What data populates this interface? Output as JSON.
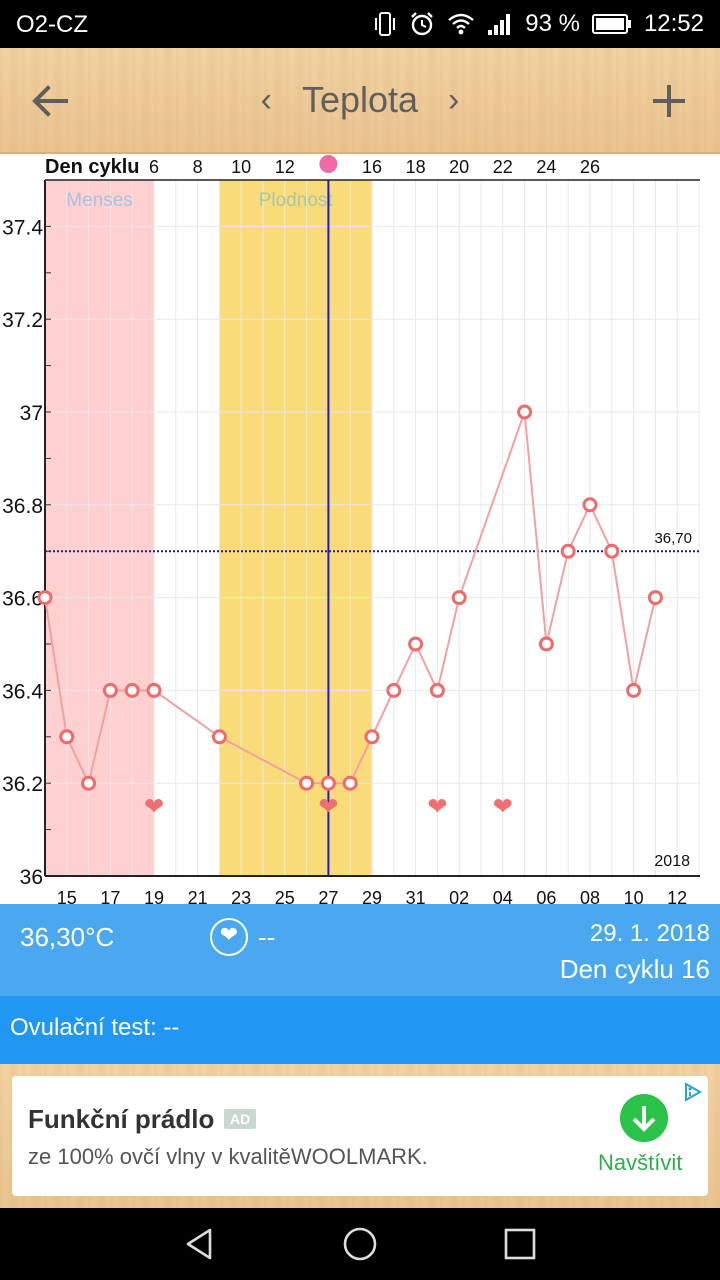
{
  "status_bar": {
    "carrier": "O2-CZ",
    "battery": "93 %",
    "time": "12:52",
    "icons": [
      "vibrate-icon",
      "alarm-icon",
      "wifi-icon",
      "signal-icon",
      "battery-icon"
    ]
  },
  "header": {
    "title": "Teplota",
    "prev_glyph": "‹",
    "next_glyph": "›"
  },
  "chart_data": {
    "type": "line",
    "top_axis_label": "Den cyklu",
    "top_ticks": [
      "6",
      "8",
      "10",
      "12",
      "16",
      "18",
      "20",
      "22",
      "24",
      "26"
    ],
    "x_ticks": [
      "15",
      "17",
      "19",
      "21",
      "23",
      "25",
      "27",
      "29",
      "31",
      "02",
      "04",
      "06",
      "08",
      "10",
      "12"
    ],
    "y_ticks": [
      "36",
      "36.2",
      "36.4",
      "36.6",
      "36.8",
      "37",
      "37.2",
      "37.4"
    ],
    "ylim": [
      36.0,
      37.5
    ],
    "dates_start_day": 14,
    "x_days": [
      14,
      15,
      16,
      17,
      18,
      19,
      22,
      26,
      27,
      28,
      29,
      30,
      31,
      32,
      33,
      36,
      37,
      38,
      39,
      40,
      41,
      42
    ],
    "values": [
      36.6,
      36.3,
      36.2,
      36.4,
      36.4,
      36.4,
      36.3,
      36.2,
      36.2,
      36.2,
      36.3,
      36.4,
      36.5,
      36.4,
      36.6,
      37.0,
      36.5,
      36.7,
      36.8,
      36.7,
      36.4,
      36.6
    ],
    "heart_days": [
      19,
      27,
      32,
      35
    ],
    "heart_value": 36.15,
    "menses": {
      "label": "Menses",
      "from_day": 14,
      "to_day": 19,
      "color": "#ffd0d0"
    },
    "fertile": {
      "label": "Plodnost",
      "from_day": 22,
      "to_day": 29,
      "color": "#fadb7a"
    },
    "threshold": {
      "value": 36.7,
      "label": "36,70",
      "color": "#1a1ab0"
    },
    "current_day": 27,
    "year_label": "2018",
    "line_color": "#f4a0a0",
    "marker_color": "#f06a6a",
    "grid": true
  },
  "info": {
    "temperature": "36,30°C",
    "heart_glyph": "❤",
    "sex_value": "--",
    "date": "29. 1. 2018",
    "cycle_day": "Den cyklu 16"
  },
  "ovulation": {
    "text": "Ovulační test: --"
  },
  "ad": {
    "title": "Funkční prádlo",
    "badge": "AD",
    "description": "ze 100% ovčí vlny v kvalitěWOOLMARK.",
    "visit_label": "Navštívit"
  },
  "colors": {
    "header_wood": "#efcc98",
    "info_blue": "#4aa8f0",
    "ovul_blue": "#2196f3",
    "ad_green": "#2bc24a"
  }
}
